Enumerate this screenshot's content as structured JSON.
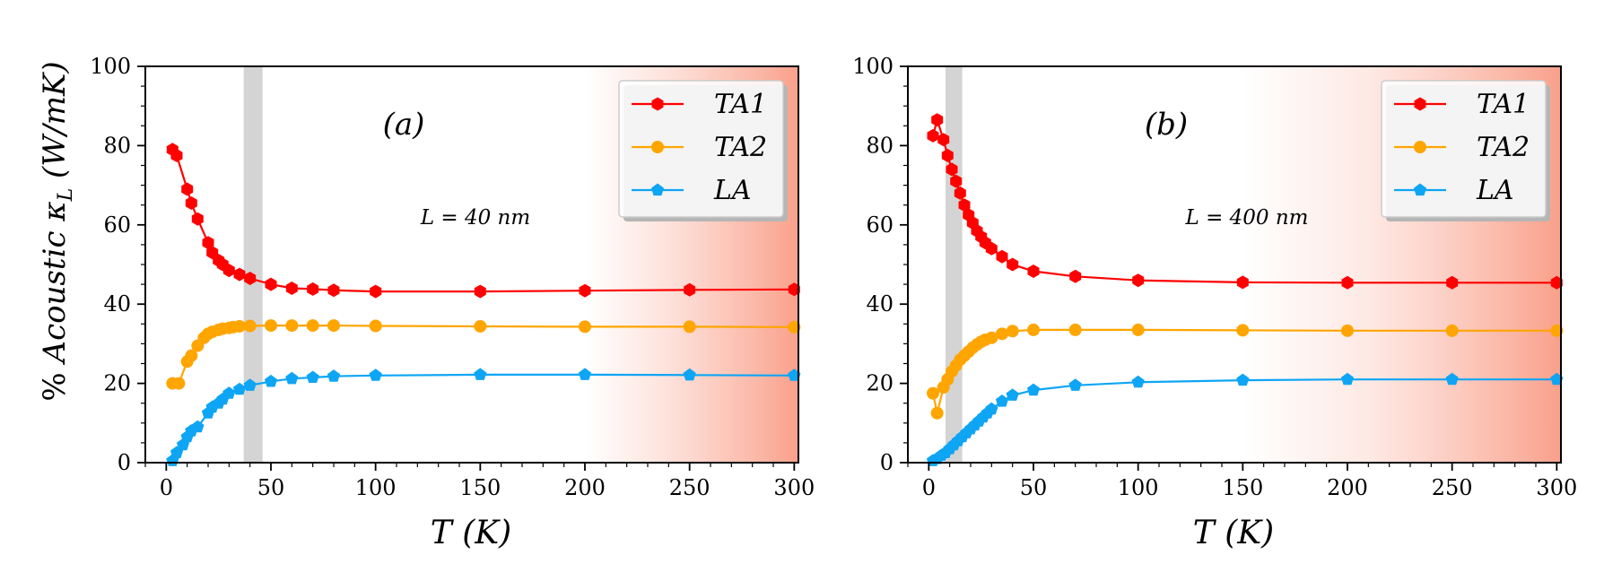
{
  "figure": {
    "ylabel_prefix": "%",
    "ylabel_word": "Acoustic",
    "ylabel_kappa": "κ",
    "ylabel_sub": "L",
    "ylabel_units": "(W/mK)"
  },
  "chart_data": [
    {
      "type": "line",
      "panel_label": "(a)",
      "annotation": "L = 40 nm",
      "xlabel": "T (K)",
      "ylabel": "% Acoustic κL (W/mK)",
      "xlim": [
        -10,
        302
      ],
      "ylim": [
        0,
        100
      ],
      "xticks": [
        0,
        50,
        100,
        150,
        200,
        250,
        300
      ],
      "yticks": [
        0,
        20,
        40,
        60,
        80,
        100
      ],
      "shaded_band": [
        37,
        46
      ],
      "gradient_region": [
        200,
        302
      ],
      "legend_position": "top-right",
      "series": [
        {
          "name": "TA1",
          "color": "#ff0000",
          "marker": "hexagon",
          "x": [
            3,
            5,
            10,
            12,
            15,
            20,
            22,
            25,
            27,
            30,
            35,
            40,
            50,
            60,
            70,
            80,
            100,
            150,
            200,
            250,
            300
          ],
          "y": [
            79,
            77.5,
            69,
            65.5,
            61.5,
            55.5,
            53,
            51,
            50,
            48.5,
            47.5,
            46.5,
            45,
            44,
            43.8,
            43.5,
            43.2,
            43.2,
            43.4,
            43.6,
            43.7
          ]
        },
        {
          "name": "TA2",
          "color": "#ffa500",
          "marker": "circle",
          "x": [
            3,
            6,
            10,
            12,
            15,
            18,
            20,
            22,
            25,
            27,
            30,
            32,
            35,
            40,
            50,
            60,
            70,
            80,
            100,
            150,
            200,
            250,
            300
          ],
          "y": [
            20,
            20,
            25.5,
            27,
            29.5,
            31.5,
            32.5,
            33,
            33.5,
            33.8,
            34,
            34.2,
            34.4,
            34.5,
            34.6,
            34.6,
            34.6,
            34.6,
            34.5,
            34.4,
            34.3,
            34.3,
            34.2
          ]
        },
        {
          "name": "LA",
          "color": "#0ea5f5",
          "marker": "pentagon",
          "x": [
            3,
            5,
            8,
            10,
            12,
            15,
            20,
            22,
            25,
            27,
            30,
            35,
            40,
            50,
            60,
            70,
            80,
            100,
            150,
            200,
            250,
            300
          ],
          "y": [
            0.5,
            2.5,
            4.5,
            6.5,
            8,
            9,
            12.5,
            14,
            15,
            16,
            17.5,
            18.5,
            19.5,
            20.5,
            21.2,
            21.5,
            21.8,
            22,
            22.2,
            22.2,
            22.1,
            22
          ]
        }
      ]
    },
    {
      "type": "line",
      "panel_label": "(b)",
      "annotation": "L = 400 nm",
      "xlabel": "T (K)",
      "ylabel": "% Acoustic κL (W/mK)",
      "xlim": [
        -10,
        302
      ],
      "ylim": [
        0,
        100
      ],
      "xticks": [
        0,
        50,
        100,
        150,
        200,
        250,
        300
      ],
      "yticks": [
        0,
        20,
        40,
        60,
        80,
        100
      ],
      "shaded_band": [
        8,
        16
      ],
      "gradient_region": [
        150,
        302
      ],
      "legend_position": "top-right",
      "series": [
        {
          "name": "TA1",
          "color": "#ff0000",
          "marker": "hexagon",
          "x": [
            2,
            4,
            7,
            9,
            11,
            13,
            15,
            17,
            19,
            21,
            23,
            25,
            27,
            30,
            35,
            40,
            50,
            70,
            100,
            150,
            200,
            250,
            300
          ],
          "y": [
            82.5,
            86.5,
            81.5,
            77.5,
            74,
            71,
            68,
            65,
            62.5,
            60.5,
            58.5,
            57,
            55.5,
            54,
            52,
            50,
            48.3,
            47,
            46,
            45.5,
            45.4,
            45.4,
            45.4
          ]
        },
        {
          "name": "TA2",
          "color": "#ffa500",
          "marker": "circle",
          "x": [
            2,
            4,
            7,
            9,
            11,
            13,
            15,
            17,
            19,
            21,
            23,
            25,
            27,
            30,
            35,
            40,
            50,
            70,
            100,
            150,
            200,
            250,
            300
          ],
          "y": [
            17.5,
            12.5,
            19,
            21,
            23,
            24.5,
            26,
            27,
            28,
            29,
            29.8,
            30.5,
            31,
            31.5,
            32.5,
            33.2,
            33.5,
            33.5,
            33.5,
            33.4,
            33.3,
            33.3,
            33.3
          ]
        },
        {
          "name": "LA",
          "color": "#0ea5f5",
          "marker": "pentagon",
          "x": [
            2,
            4,
            6,
            8,
            10,
            12,
            14,
            16,
            18,
            20,
            22,
            24,
            26,
            28,
            30,
            35,
            40,
            50,
            70,
            100,
            150,
            200,
            250,
            300
          ],
          "y": [
            0.5,
            1,
            1.8,
            2.5,
            3.5,
            4.5,
            5.5,
            6.5,
            7.5,
            8.5,
            9.5,
            10.5,
            11.5,
            12.5,
            13.5,
            15.5,
            17,
            18.3,
            19.5,
            20.3,
            20.8,
            21,
            21,
            21
          ]
        }
      ]
    }
  ]
}
